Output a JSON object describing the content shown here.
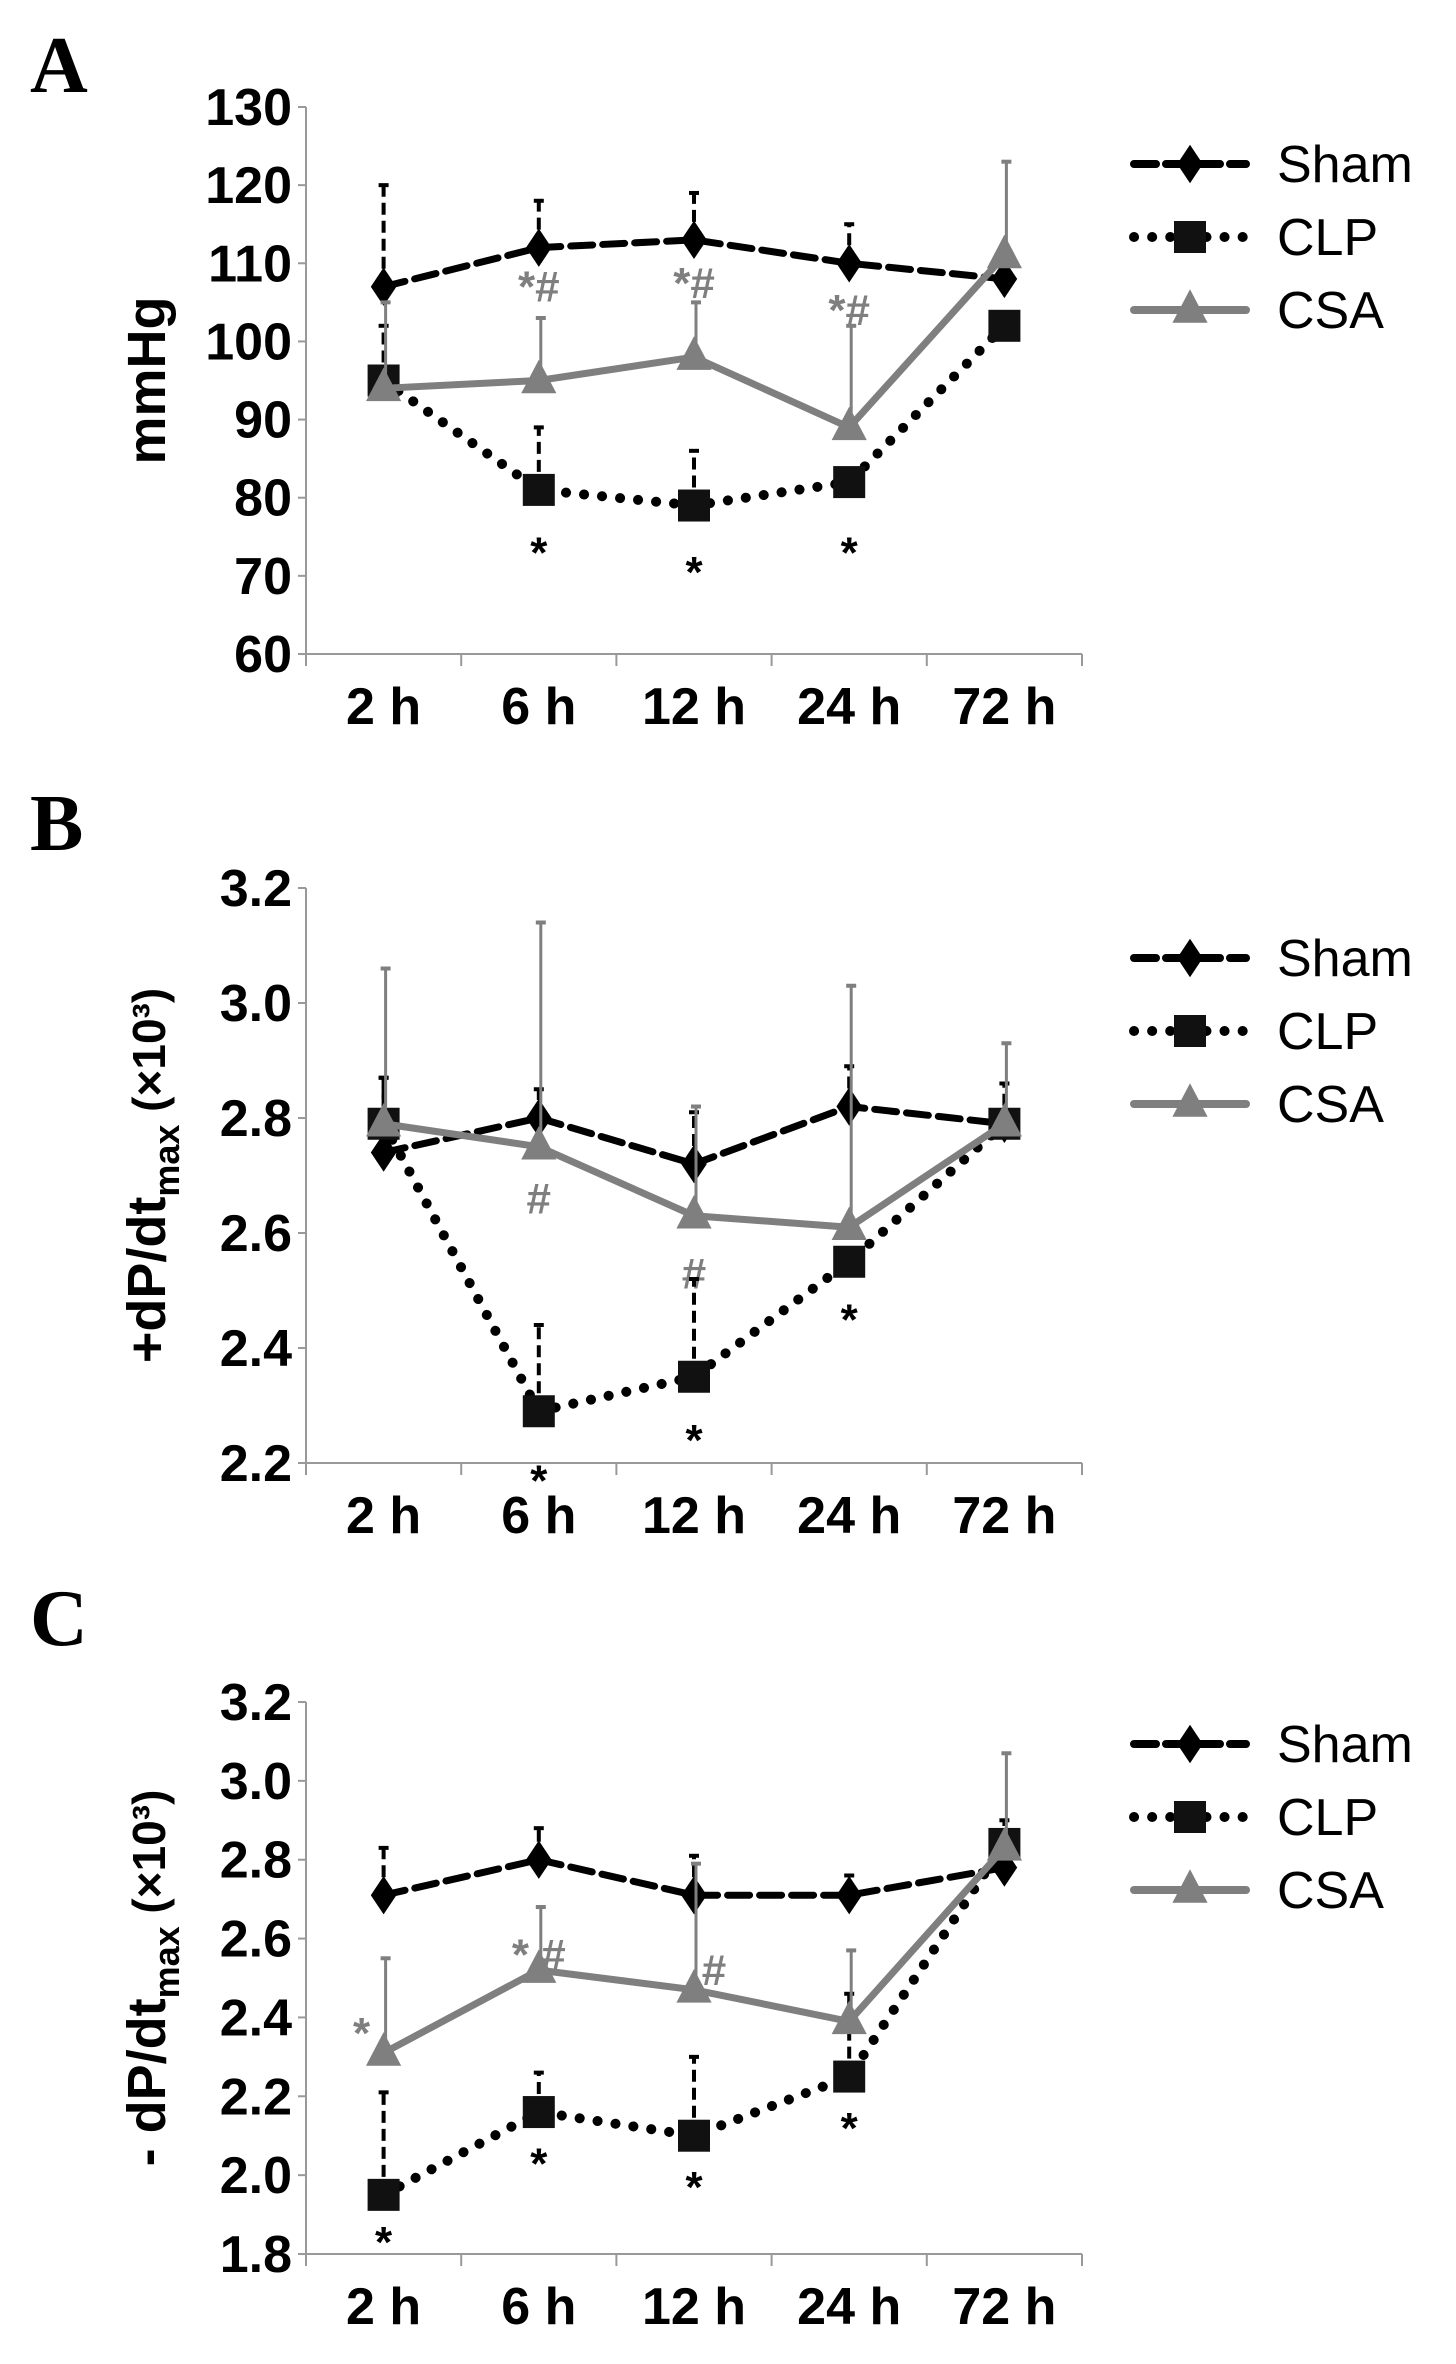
{
  "chart_data": [
    {
      "type": "line",
      "panel_label": "A",
      "ylabel": "mmHg",
      "ylim": [
        60,
        130
      ],
      "yticks": [
        "60",
        "70",
        "80",
        "90",
        "100",
        "110",
        "120",
        "130"
      ],
      "categories": [
        "2 h",
        "6 h",
        "12 h",
        "24 h",
        "72 h"
      ],
      "series": [
        {
          "name": "Sham",
          "values": [
            107,
            112,
            113,
            110,
            108
          ],
          "err_upper": [
            120,
            118,
            119,
            115,
            null
          ],
          "color": "#000000",
          "style": "dashed",
          "marker": "diamond"
        },
        {
          "name": "CLP",
          "values": [
            95,
            81,
            79,
            82,
            102
          ],
          "err_upper": [
            102,
            89,
            86,
            null,
            null
          ],
          "color": "#000000",
          "style": "dotted",
          "marker": "square"
        },
        {
          "name": "CSA",
          "values": [
            94,
            95,
            98,
            89,
            111
          ],
          "err_upper": [
            105,
            103,
            105,
            102,
            123
          ],
          "color": "#7f7f7f",
          "style": "solid",
          "marker": "triangle"
        }
      ],
      "annotations": [
        {
          "text": "*#",
          "category": "6 h",
          "y": 107,
          "color": "#7f7f7f"
        },
        {
          "text": "*#",
          "category": "12 h",
          "y": 107.5,
          "color": "#7f7f7f"
        },
        {
          "text": "*#",
          "category": "24 h",
          "y": 104,
          "color": "#7f7f7f"
        },
        {
          "text": "*",
          "category": "6 h",
          "y": 73,
          "color": "#000000"
        },
        {
          "text": "*",
          "category": "12 h",
          "y": 70.5,
          "color": "#000000"
        },
        {
          "text": "*",
          "category": "24 h",
          "y": 73,
          "color": "#000000"
        }
      ]
    },
    {
      "type": "line",
      "panel_label": "B",
      "ylabel": "+dP/dt",
      "ylabel_sub": "max",
      "ylabel_unit": " (×10³)",
      "ylim": [
        2.2,
        3.2
      ],
      "yticks": [
        "2.2",
        "2.4",
        "2.6",
        "2.8",
        "3.0",
        "3.2"
      ],
      "categories": [
        "2 h",
        "6 h",
        "12 h",
        "24 h",
        "72 h"
      ],
      "series": [
        {
          "name": "Sham",
          "values": [
            2.74,
            2.8,
            2.72,
            2.82,
            2.79
          ],
          "err_upper": [
            2.87,
            2.85,
            2.81,
            2.89,
            2.86
          ],
          "color": "#000000",
          "style": "dashed",
          "marker": "diamond"
        },
        {
          "name": "CLP",
          "values": [
            2.79,
            2.29,
            2.35,
            2.55,
            2.79
          ],
          "err_upper": [
            2.87,
            2.44,
            2.52,
            null,
            null
          ],
          "color": "#000000",
          "style": "dotted",
          "marker": "square"
        },
        {
          "name": "CSA",
          "values": [
            2.79,
            2.75,
            2.63,
            2.61,
            2.79
          ],
          "err_upper": [
            3.06,
            3.14,
            2.82,
            3.03,
            2.93
          ],
          "color": "#7f7f7f",
          "style": "solid",
          "marker": "triangle"
        }
      ],
      "annotations": [
        {
          "text": "#",
          "category": "6 h",
          "y": 2.66,
          "color": "#7f7f7f"
        },
        {
          "text": "#",
          "category": "12 h",
          "y": 2.53,
          "color": "#7f7f7f"
        },
        {
          "text": "*",
          "category": "6 h",
          "y": 2.17,
          "color": "#000000"
        },
        {
          "text": "*",
          "category": "12 h",
          "y": 2.24,
          "color": "#000000"
        },
        {
          "text": "*",
          "category": "24 h",
          "y": 2.45,
          "color": "#000000"
        }
      ]
    },
    {
      "type": "line",
      "panel_label": "C",
      "ylabel": "- dP/dt",
      "ylabel_sub": "max",
      "ylabel_unit": " (×10³)",
      "ylim": [
        1.8,
        3.2
      ],
      "yticks": [
        "1.8",
        "2.0",
        "2.2",
        "2.4",
        "2.6",
        "2.8",
        "3.0",
        "3.2"
      ],
      "categories": [
        "2 h",
        "6 h",
        "12 h",
        "24 h",
        "72 h"
      ],
      "series": [
        {
          "name": "Sham",
          "values": [
            2.71,
            2.8,
            2.71,
            2.71,
            2.78
          ],
          "err_upper": [
            2.83,
            2.88,
            2.81,
            2.76,
            null
          ],
          "color": "#000000",
          "style": "dashed",
          "marker": "diamond"
        },
        {
          "name": "CLP",
          "values": [
            1.95,
            2.16,
            2.1,
            2.25,
            2.84
          ],
          "err_upper": [
            2.21,
            2.26,
            2.3,
            2.46,
            2.9
          ],
          "color": "#000000",
          "style": "dotted",
          "marker": "square"
        },
        {
          "name": "CSA",
          "values": [
            2.31,
            2.52,
            2.47,
            2.39,
            2.83
          ],
          "err_upper": [
            2.55,
            2.68,
            2.79,
            2.57,
            3.07
          ],
          "color": "#7f7f7f",
          "style": "solid",
          "marker": "triangle"
        }
      ],
      "annotations": [
        {
          "text": "*",
          "category": "2 h",
          "y": 2.36,
          "color": "#7f7f7f",
          "dx": -22
        },
        {
          "text": "* #",
          "category": "6 h",
          "y": 2.56,
          "color": "#7f7f7f"
        },
        {
          "text": "#",
          "category": "12 h",
          "y": 2.52,
          "color": "#7f7f7f",
          "dx": 20
        },
        {
          "text": "*",
          "category": "2 h",
          "y": 1.83,
          "color": "#000000"
        },
        {
          "text": "*",
          "category": "6 h",
          "y": 2.03,
          "color": "#000000"
        },
        {
          "text": "*",
          "category": "12 h",
          "y": 1.97,
          "color": "#000000"
        },
        {
          "text": "*",
          "category": "24 h",
          "y": 2.12,
          "color": "#000000"
        }
      ]
    }
  ]
}
